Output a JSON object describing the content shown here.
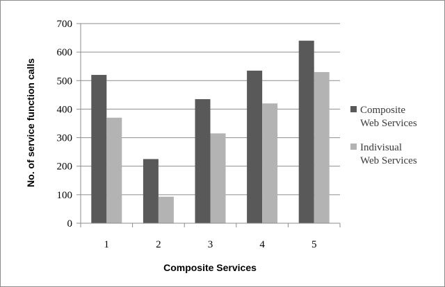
{
  "chart_data": {
    "type": "bar",
    "title": "",
    "xlabel": "Composite Services",
    "ylabel": "No. of service function calls",
    "categories": [
      "1",
      "2",
      "3",
      "4",
      "5"
    ],
    "ylim": [
      0,
      700
    ],
    "yticks": [
      0,
      100,
      200,
      300,
      400,
      500,
      600,
      700
    ],
    "grid": true,
    "legend_position": "right",
    "series": [
      {
        "name_lines": [
          "Composite",
          "Web Services"
        ],
        "color": "#595959",
        "values": [
          520,
          225,
          435,
          535,
          640
        ]
      },
      {
        "name_lines": [
          "Indivisual",
          "Web Services"
        ],
        "color": "#b3b3b3",
        "values": [
          370,
          93,
          315,
          420,
          530
        ]
      }
    ]
  }
}
